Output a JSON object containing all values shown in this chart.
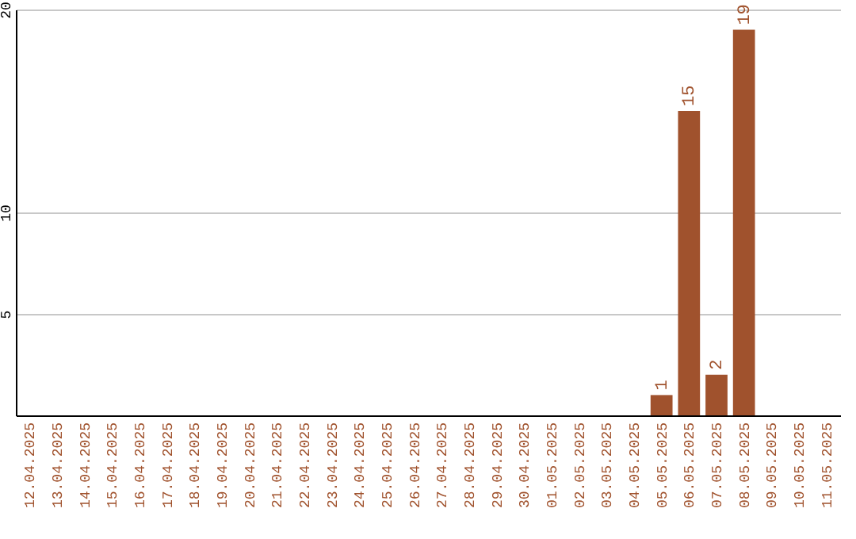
{
  "chart_data": {
    "type": "bar",
    "categories": [
      "12.04.2025",
      "13.04.2025",
      "14.04.2025",
      "15.04.2025",
      "16.04.2025",
      "17.04.2025",
      "18.04.2025",
      "19.04.2025",
      "20.04.2025",
      "21.04.2025",
      "22.04.2025",
      "23.04.2025",
      "24.04.2025",
      "25.04.2025",
      "26.04.2025",
      "27.04.2025",
      "28.04.2025",
      "29.04.2025",
      "30.04.2025",
      "01.05.2025",
      "02.05.2025",
      "03.05.2025",
      "04.05.2025",
      "05.05.2025",
      "06.05.2025",
      "07.05.2025",
      "08.05.2025",
      "09.05.2025",
      "10.05.2025",
      "11.05.2025"
    ],
    "values": [
      0,
      0,
      0,
      0,
      0,
      0,
      0,
      0,
      0,
      0,
      0,
      0,
      0,
      0,
      0,
      0,
      0,
      0,
      0,
      0,
      0,
      0,
      0,
      1,
      15,
      2,
      19,
      0,
      0,
      0
    ],
    "value_labels": [
      null,
      null,
      null,
      null,
      null,
      null,
      null,
      null,
      null,
      null,
      null,
      null,
      null,
      null,
      null,
      null,
      null,
      null,
      null,
      null,
      null,
      null,
      null,
      "1",
      "15",
      "2",
      "19",
      null,
      null,
      null
    ],
    "color": "#a0522d",
    "ylim": [
      0,
      20
    ],
    "yticks": [
      5,
      10,
      20
    ],
    "grid": "y"
  }
}
